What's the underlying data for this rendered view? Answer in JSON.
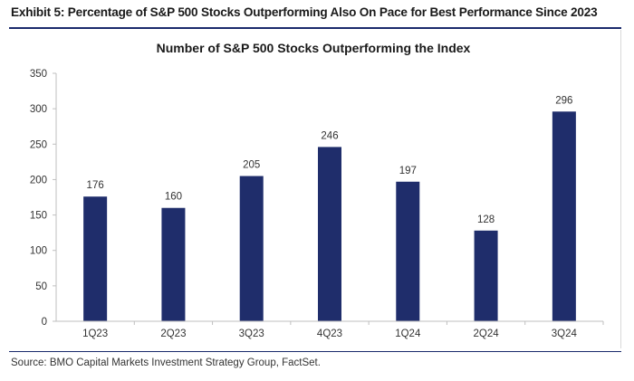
{
  "exhibit_title": "Exhibit 5: Percentage of S&P 500 Stocks Outperforming Also On Pace for Best Performance Since 2023",
  "source": "Source: BMO Capital Markets Investment Strategy Group, FactSet.",
  "colors": {
    "bar": "#1f2d6b",
    "rule": "#1a2a6c",
    "axis": "#bfbfbf"
  },
  "chart_data": {
    "type": "bar",
    "title": "Number of S&P 500 Stocks Outperforming the Index",
    "xlabel": "",
    "ylabel": "",
    "categories": [
      "1Q23",
      "2Q23",
      "3Q23",
      "4Q23",
      "1Q24",
      "2Q24",
      "3Q24"
    ],
    "values": [
      176,
      160,
      205,
      246,
      197,
      128,
      296
    ],
    "ylim": [
      0,
      350
    ],
    "yticks": [
      0,
      50,
      100,
      150,
      200,
      250,
      300,
      350
    ],
    "grid": false,
    "legend": "none"
  }
}
